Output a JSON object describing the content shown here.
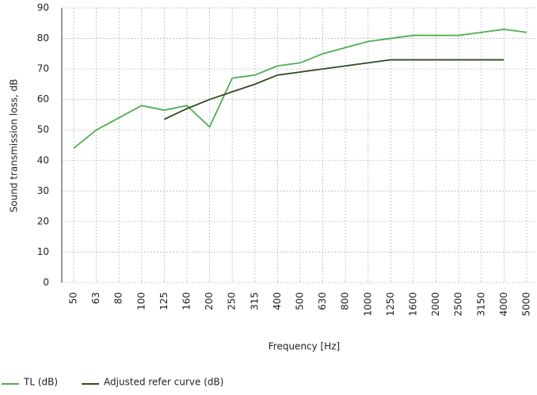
{
  "chart_data": {
    "type": "line",
    "xlabel": "Frequency [Hz]",
    "ylabel": "Sound transmission loss, dB",
    "categories": [
      "50",
      "63",
      "80",
      "100",
      "125",
      "160",
      "200",
      "250",
      "315",
      "400",
      "500",
      "630",
      "800",
      "1000",
      "1250",
      "1600",
      "2000",
      "2500",
      "3150",
      "4000",
      "5000"
    ],
    "series": [
      {
        "name": "TL (dB)",
        "color": "#4caf50",
        "values": [
          44,
          50,
          54,
          58,
          56.5,
          58,
          51,
          67,
          68,
          71,
          72,
          75,
          77,
          79,
          80,
          81,
          81,
          81,
          82,
          83,
          82
        ]
      },
      {
        "name": "Adjusted refer curve (dB)",
        "color": "#2f4a1f",
        "values": [
          null,
          null,
          null,
          null,
          53.5,
          57,
          60,
          62.5,
          65,
          68,
          69,
          70,
          71,
          72,
          73,
          73,
          73,
          73,
          73,
          73,
          null
        ]
      }
    ],
    "ylim": [
      0,
      90
    ],
    "yticks": [
      0,
      10,
      20,
      30,
      40,
      50,
      60,
      70,
      80,
      90
    ],
    "grid": true
  }
}
